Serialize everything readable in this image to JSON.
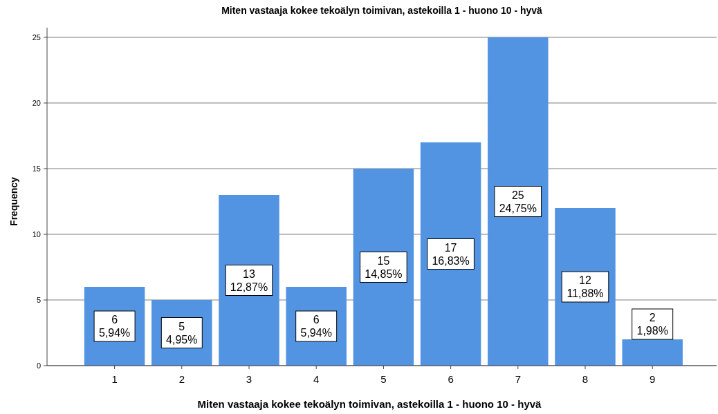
{
  "chart_data": {
    "type": "bar",
    "title": "Miten vastaaja kokee tekoälyn toimivan, astekoilla 1 - huono 10 - hyvä",
    "xlabel": "Miten vastaaja kokee tekoälyn toimivan, astekoilla 1 - huono 10 - hyvä",
    "ylabel": "Frequency",
    "categories": [
      "1",
      "2",
      "3",
      "4",
      "5",
      "6",
      "7",
      "8",
      "9"
    ],
    "values": [
      6,
      5,
      13,
      6,
      15,
      17,
      25,
      12,
      2
    ],
    "value_labels": [
      "6\n5,94%",
      "5\n4,95%",
      "13\n12,87%",
      "6\n5,94%",
      "15\n14,85%",
      "17\n16,83%",
      "25\n24,75%",
      "12\n11,88%",
      "2\n1,98%"
    ],
    "color": "#5294e2",
    "ylim": [
      0,
      25
    ],
    "yticks": [
      0,
      5,
      10,
      15,
      20,
      25
    ],
    "grid": "y"
  }
}
